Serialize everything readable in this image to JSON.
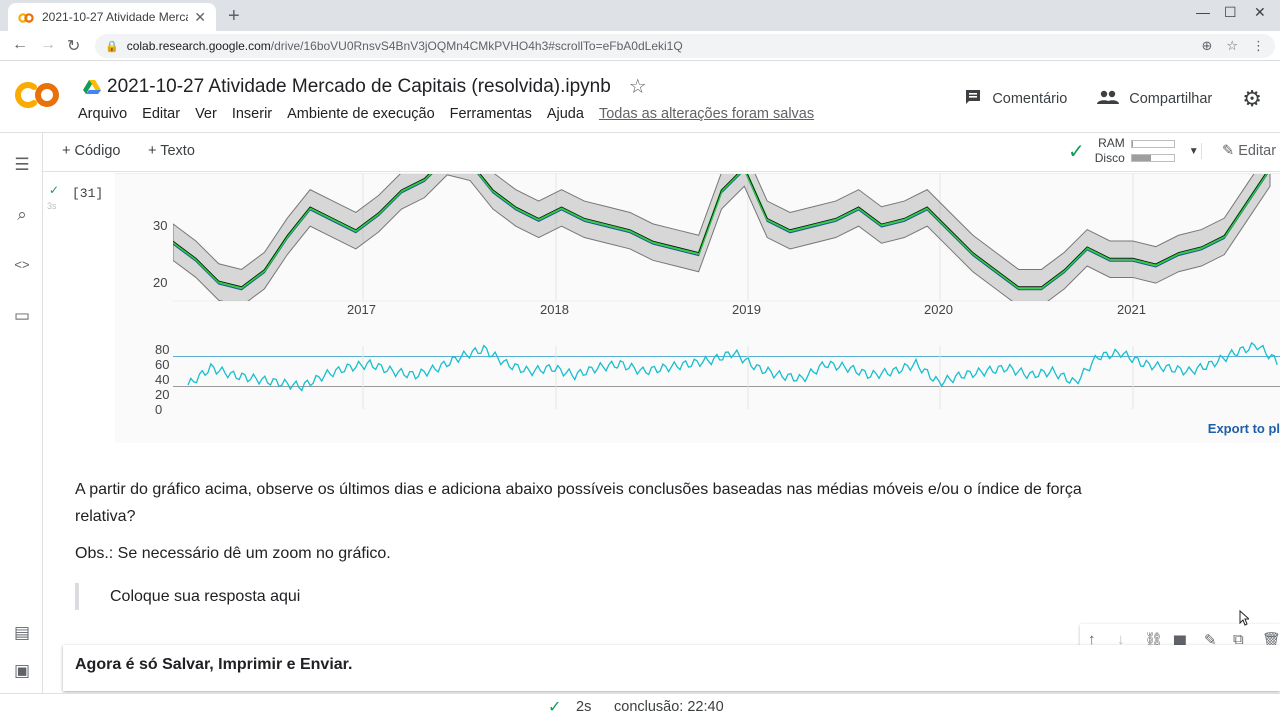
{
  "browser": {
    "tab_title": "2021-10-27 Atividade Mercado d",
    "tab_close": "✕",
    "new_tab": "+",
    "url_host": "colab.research.google.com",
    "url_path": "/drive/16boVU0RnsvS4BnV3jOQMn4CMkPVHO4h3#scrollTo=eFbA0dLeki1Q",
    "back": "←",
    "forward": "→",
    "reload": "↻",
    "lock": "🔒",
    "zoom_icon": "⊕",
    "star_icon": "☆",
    "menu_icon": "⋮",
    "minimize": "—",
    "maximize": "☐",
    "close": "✕"
  },
  "header": {
    "notebook_title": "2021-10-27 Atividade Mercado de Capitais (resolvida).ipynb",
    "star": "☆",
    "menu": [
      "Arquivo",
      "Editar",
      "Ver",
      "Inserir",
      "Ambiente de execução",
      "Ferramentas",
      "Ajuda"
    ],
    "saved_status": "Todas as alterações foram salvas",
    "comment_label": "Comentário",
    "share_label": "Compartilhar",
    "comment_icon": "▆",
    "share_icon": "👥",
    "settings_icon": "⚙"
  },
  "toolbar": {
    "add_code": "+ Código",
    "add_text": "+ Texto",
    "ram_label": "RAM",
    "disk_label": "Disco",
    "ram_fraction": 0.04,
    "disk_fraction": 0.45,
    "connected_icon": "✓",
    "dropdown_icon": "▼",
    "edit_label": "Editar",
    "edit_icon": "✎"
  },
  "sidebar": {
    "icons": [
      "☰",
      "⌕",
      "<>",
      "▭"
    ],
    "bottom_icons": [
      "▤",
      "▣"
    ]
  },
  "cell": {
    "exec_count": "[31]",
    "exec_time": "3s",
    "ok_icon": "✓",
    "export_link": "Export to pl"
  },
  "chart_data": {
    "type": "line",
    "price_axis": {
      "ticks": [
        30,
        20
      ]
    },
    "x_axis": {
      "ticks": [
        "2017",
        "2018",
        "2019",
        "2020",
        "2021"
      ]
    },
    "rsi_axis": {
      "ticks": [
        80,
        60,
        40,
        20,
        0
      ],
      "reference_lines": [
        70,
        30
      ]
    },
    "series": [
      {
        "values": [
          27,
          24,
          20,
          19,
          22,
          28,
          33,
          31,
          29,
          32,
          36,
          38,
          42,
          41,
          36,
          33,
          31,
          33,
          31,
          30,
          29,
          27,
          26,
          25,
          36,
          40,
          31,
          29,
          30,
          31,
          33,
          30,
          31,
          33,
          29,
          25,
          22,
          19,
          19,
          22,
          26,
          24,
          24,
          23,
          25,
          26,
          28,
          34,
          40
        ]
      },
      {
        "values": [
          32,
          55,
          45,
          40,
          35,
          30,
          45,
          55,
          60,
          50,
          45,
          55,
          70,
          80,
          60,
          50,
          55,
          45,
          55,
          60,
          50,
          55,
          60,
          65,
          75,
          55,
          45,
          40,
          60,
          55,
          45,
          50,
          60,
          35,
          45,
          50,
          55,
          45,
          50,
          35,
          70,
          75,
          60,
          55,
          50,
          60,
          75,
          85,
          60
        ]
      }
    ],
    "colors": {
      "price": "#2ecc40",
      "band": "#888888",
      "rsi": "#17becf",
      "line70": "#5aaecf",
      "line30": "#999999"
    }
  },
  "content": {
    "question": "A partir do gráfico acima, observe os últimos dias e adiciona abaixo possíveis conclusões baseadas nas médias móveis e/ou o índice de força relativa?",
    "question_line1": "A partir do gráfico acima, observe os últimos dias e adiciona abaixo possíveis conclusões baseadas nas médias móveis e/ou o índice de força",
    "question_line2": "relativa?",
    "note": "Obs.: Se necessário dê um zoom no gráfico.",
    "answer_placeholder": "Coloque sua resposta aqui",
    "final_text": "Agora é só Salvar, Imprimir e Enviar."
  },
  "cell_toolbar": {
    "icons": [
      "↑",
      "↓",
      "⛓",
      "▆",
      "✎",
      "⧉",
      "🗑"
    ]
  },
  "status": {
    "icon": "✓",
    "duration": "2s",
    "completion": "conclusão: 22:40"
  }
}
